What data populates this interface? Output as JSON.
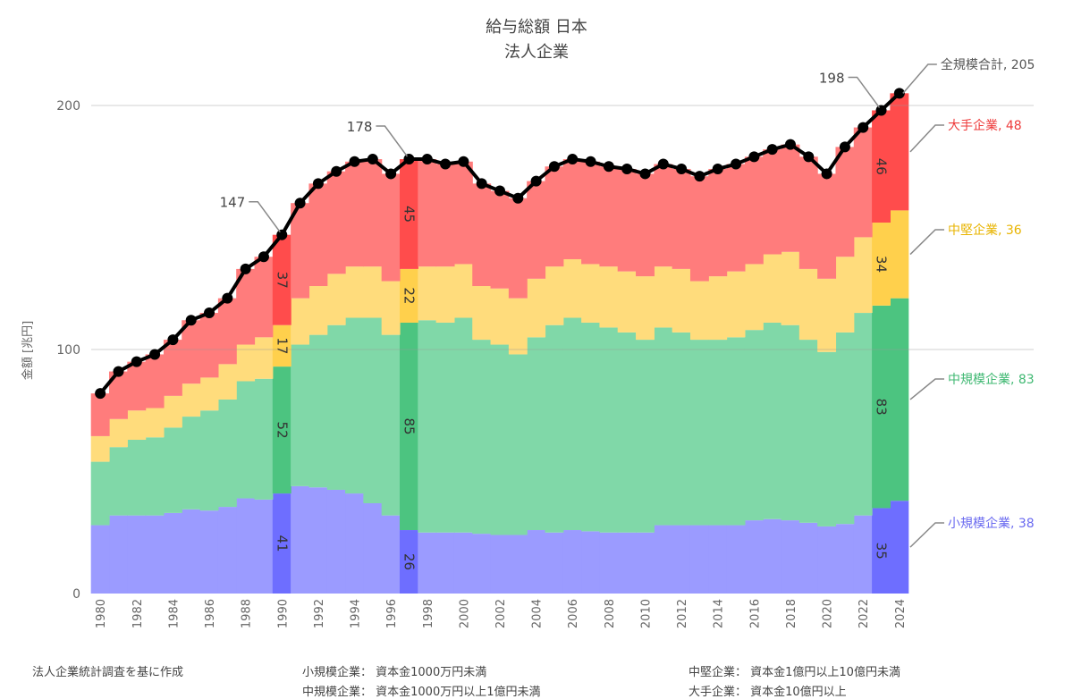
{
  "chart_data": {
    "type": "area",
    "stacked": true,
    "title": "給与総額 日本",
    "subtitle": "法人企業",
    "xlabel": "",
    "ylabel": "金額 [兆円]",
    "ylim": [
      0,
      220
    ],
    "yticks": [
      0,
      100,
      200
    ],
    "grid": true,
    "x": [
      1980,
      1981,
      1982,
      1983,
      1984,
      1985,
      1986,
      1987,
      1988,
      1989,
      1990,
      1991,
      1992,
      1993,
      1994,
      1995,
      1996,
      1997,
      1998,
      1999,
      2000,
      2001,
      2002,
      2003,
      2004,
      2005,
      2006,
      2007,
      2008,
      2009,
      2010,
      2011,
      2012,
      2013,
      2014,
      2015,
      2016,
      2017,
      2018,
      2019,
      2020,
      2021,
      2022,
      2023,
      2024
    ],
    "highlight_years": [
      1990,
      1997,
      2023,
      2024
    ],
    "series": [
      {
        "name": "小規模企業",
        "color": "#9b9bff",
        "highlight": "#6e6eff",
        "label_color": "#6a6af0",
        "values": [
          28,
          32,
          32,
          32,
          33,
          34.5,
          34,
          35.5,
          39,
          38.5,
          41,
          44,
          43.5,
          42.5,
          41,
          37,
          32,
          26,
          25,
          25,
          25,
          24.5,
          24,
          24,
          26,
          25,
          26,
          25.5,
          25,
          25,
          25,
          28,
          28,
          28,
          28,
          28,
          30,
          30.5,
          30,
          29,
          27.5,
          28.5,
          32,
          35,
          38
        ]
      },
      {
        "name": "中規模企業",
        "color": "#80d8a8",
        "highlight": "#4cc480",
        "label_color": "#3fb872",
        "values": [
          26,
          28,
          31,
          32,
          35,
          38,
          41,
          44,
          48,
          49.5,
          52,
          58,
          62.5,
          67.5,
          72,
          76,
          74,
          85,
          87,
          86,
          88,
          79.5,
          78,
          74,
          79,
          85,
          87,
          85.5,
          84,
          82,
          79,
          81,
          79,
          76,
          76,
          77,
          78,
          80.5,
          80,
          75,
          71.5,
          78.5,
          83,
          83,
          83
        ]
      },
      {
        "name": "中堅企業",
        "color": "#ffdc7c",
        "highlight": "#ffd04c",
        "label_color": "#e8b400",
        "values": [
          10.5,
          11.5,
          12,
          12,
          13,
          13.5,
          13.5,
          14.5,
          15,
          17,
          17,
          19,
          20,
          21,
          21,
          21,
          22,
          22,
          22,
          23,
          22,
          22,
          23,
          23,
          24,
          24,
          24,
          24,
          25,
          25,
          26,
          25,
          26,
          24,
          26,
          27,
          27,
          28,
          30,
          29,
          30,
          31,
          31,
          34,
          36
        ]
      },
      {
        "name": "大手企業",
        "color": "#ff7c7c",
        "highlight": "#ff4c4c",
        "label_color": "#ee3b3b",
        "values": [
          17.5,
          19.5,
          20,
          22,
          23,
          26,
          26.5,
          27,
          31,
          33,
          37,
          39,
          42,
          42,
          43,
          44,
          44,
          45,
          44,
          42,
          42,
          42,
          40,
          41,
          40,
          41,
          41,
          42,
          41,
          42,
          42,
          42,
          41,
          43,
          44,
          44,
          44,
          43,
          44,
          46,
          43,
          45,
          45,
          46,
          48
        ]
      }
    ],
    "total": {
      "name": "全規模合計",
      "color": "#000000",
      "values": [
        82,
        91,
        95,
        98,
        104,
        112,
        115,
        121,
        133,
        138,
        147,
        160,
        168,
        173,
        177,
        178,
        172,
        178,
        178,
        176,
        177,
        168,
        165,
        162,
        169,
        175,
        178,
        177,
        175,
        174,
        172,
        176,
        174,
        171,
        174,
        176,
        179,
        182,
        184,
        179,
        172,
        183,
        191,
        198,
        205
      ]
    },
    "segment_labels": [
      {
        "year": 1990,
        "values": [
          "41",
          "52",
          "17",
          "37"
        ]
      },
      {
        "year": 1997,
        "values": [
          "26",
          "85",
          "22",
          "45"
        ]
      },
      {
        "year": 2023,
        "values": [
          "35",
          "83",
          "34",
          "46"
        ]
      }
    ],
    "total_callouts": [
      {
        "year": 1990,
        "text": "147"
      },
      {
        "year": 1997,
        "text": "178"
      },
      {
        "year": 2023,
        "text": "198"
      }
    ],
    "end_labels": [
      "小規模企業, 38",
      "中規模企業, 83",
      "中堅企業, 36",
      "大手企業, 48",
      "全規模合計, 205"
    ],
    "legend_placement": "right (end labels)"
  },
  "notes": {
    "source": "法人企業統計調査を基に作成",
    "def_small": "小規模企業： 資本金1000万円未満",
    "def_mid": "中規模企業： 資本金1000万円以上1億円未満",
    "def_chuken": "中堅企業： 資本金1億円以上10億円未満",
    "def_large": "大手企業： 資本金10億円以上"
  }
}
